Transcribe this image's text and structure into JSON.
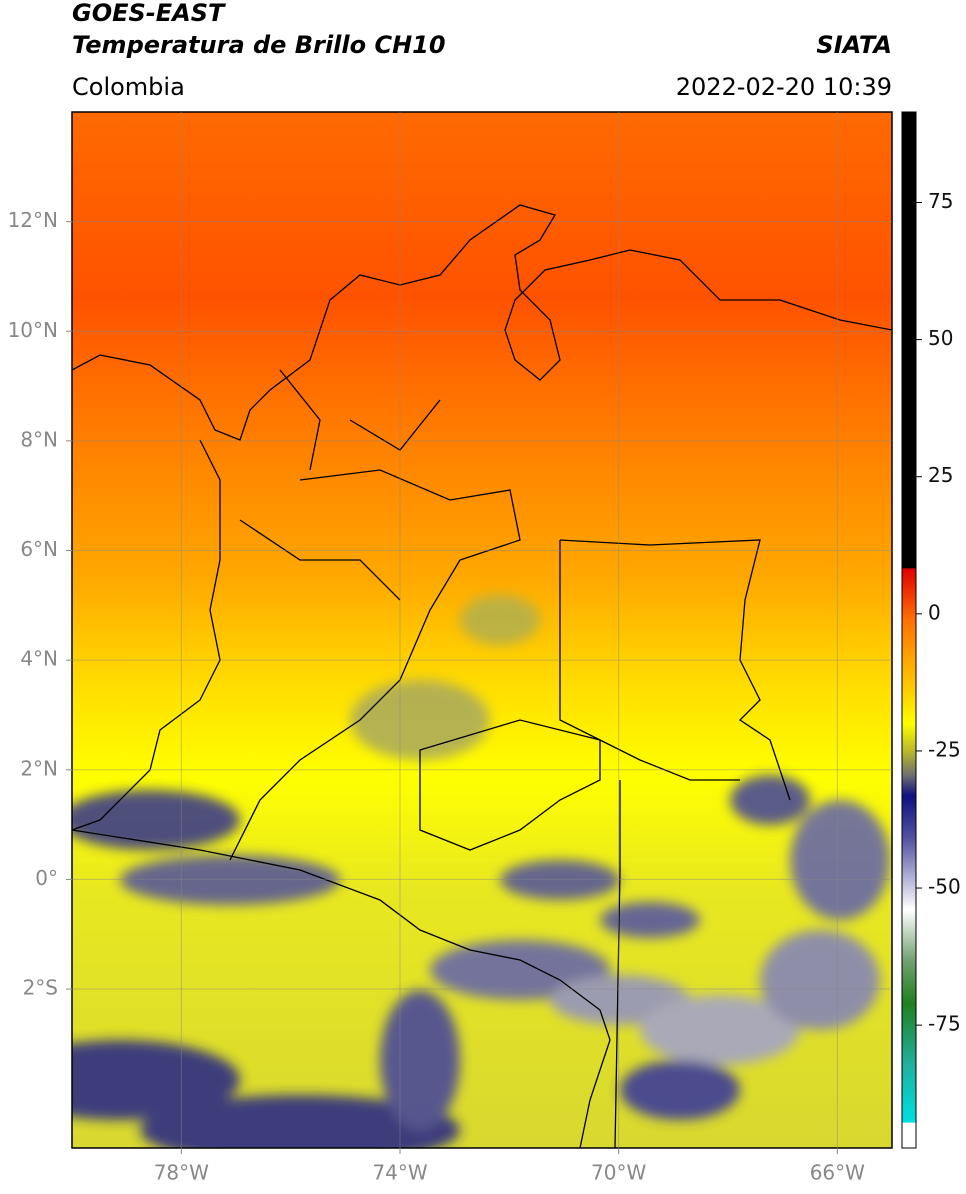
{
  "header": {
    "title": "GOES-EAST",
    "subtitle": "Temperatura de Brillo CH10",
    "source": "SIATA",
    "region": "Colombia",
    "datetime": "2022-02-20 10:39"
  },
  "map": {
    "lonlim": [
      -80,
      -65
    ],
    "latlim": [
      -4.9,
      14
    ],
    "lon_ticks": [
      {
        "value": -78,
        "label": "78°W"
      },
      {
        "value": -74,
        "label": "74°W"
      },
      {
        "value": -70,
        "label": "70°W"
      },
      {
        "value": -66,
        "label": "66°W"
      }
    ],
    "lat_ticks": [
      {
        "value": 12,
        "label": "12°N"
      },
      {
        "value": 10,
        "label": "10°N"
      },
      {
        "value": 8,
        "label": "8°N"
      },
      {
        "value": 6,
        "label": "6°N"
      },
      {
        "value": 4,
        "label": "4°N"
      },
      {
        "value": 2,
        "label": "2°N"
      },
      {
        "value": 0,
        "label": "0°"
      },
      {
        "value": -2,
        "label": "2°S"
      }
    ]
  },
  "colorbar": {
    "lim": [
      -97.4,
      91.5
    ],
    "ticks": [
      75,
      50,
      25,
      0,
      -25,
      -50,
      -75
    ]
  }
}
